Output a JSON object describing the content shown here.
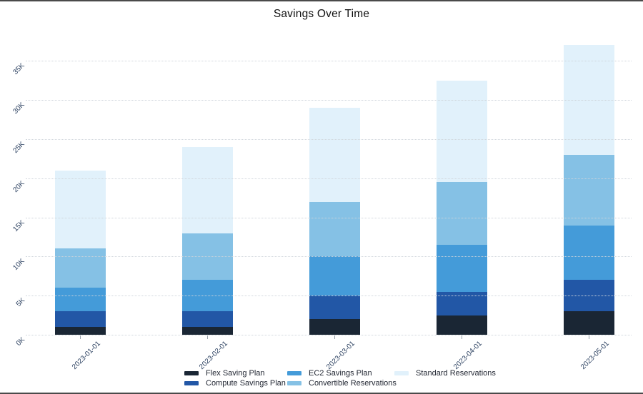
{
  "chart_data": {
    "type": "bar",
    "stacked": true,
    "title": "Savings Over Time",
    "categories": [
      "2023-01-01",
      "2023-02-01",
      "2023-03-01",
      "2023-04-01",
      "2023-05-01"
    ],
    "series": [
      {
        "name": "Flex Saving Plan",
        "color": "#1a2634",
        "values": [
          1000,
          1000,
          2000,
          2500,
          3000
        ]
      },
      {
        "name": "Compute Savings Plan",
        "color": "#2257a6",
        "values": [
          2000,
          2000,
          3000,
          3000,
          4000
        ]
      },
      {
        "name": "EC2 Savings Plan",
        "color": "#449bd9",
        "values": [
          3000,
          4000,
          5000,
          6000,
          7000
        ]
      },
      {
        "name": "Convertible Reservations",
        "color": "#85c1e5",
        "values": [
          5000,
          6000,
          7000,
          8000,
          9000
        ]
      },
      {
        "name": "Standard Reservations",
        "color": "#e1f1fb",
        "values": [
          10000,
          11000,
          12000,
          13000,
          14000
        ]
      }
    ],
    "totals": [
      21000,
      24000,
      29000,
      32500,
      37000
    ],
    "y_ticks": [
      {
        "label": "0K",
        "value": 0
      },
      {
        "label": "5K",
        "value": 5000
      },
      {
        "label": "10K",
        "value": 10000
      },
      {
        "label": "15K",
        "value": 15000
      },
      {
        "label": "20K",
        "value": 20000
      },
      {
        "label": "25K",
        "value": 25000
      },
      {
        "label": "30K",
        "value": 30000
      },
      {
        "label": "35K",
        "value": 35000
      }
    ],
    "axis_max": 35000,
    "grid": "dotted-horizontal",
    "legend_position": "bottom",
    "tick_label_rotation_deg": -45,
    "colors": {
      "grid": "#ced4da",
      "tick_text": "#2a3f5f",
      "title_text": "#111111"
    }
  }
}
